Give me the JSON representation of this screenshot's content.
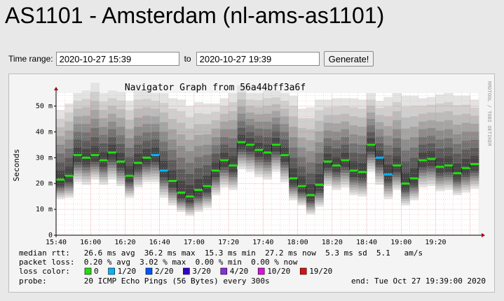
{
  "page": {
    "title": "AS1101 - Amsterdam (nl-ams-as1101)"
  },
  "form": {
    "time_range_label": "Time range:",
    "from_value": "2020-10-27 15:39",
    "to_label": "to",
    "to_value": "2020-10-27 19:39",
    "generate_label": "Generate!"
  },
  "graph": {
    "side_label": "RRDTOOL / TOBI OETIKER",
    "legend": {
      "rtt_line": "median rtt:   26.6 ms avg  36.2 ms max  15.3 ms min  27.2 ms now  5.3 ms sd  5.1   am/s",
      "loss_line": "packet loss:  0.20 % avg  3.02 % max  0.00 % min  0.00 % now",
      "loss_color_label": "loss color:",
      "loss_items": [
        {
          "label": "0",
          "color": "#22dd11"
        },
        {
          "label": "1/20",
          "color": "#00b4ff"
        },
        {
          "label": "2/20",
          "color": "#0055ff"
        },
        {
          "label": "3/20",
          "color": "#3300cc"
        },
        {
          "label": "4/20",
          "color": "#8a2be2"
        },
        {
          "label": "10/20",
          "color": "#dd11dd"
        },
        {
          "label": "19/20",
          "color": "#dd1111"
        }
      ],
      "probe_line": "probe:        20 ICMP Echo Pings (56 Bytes) every 300s",
      "end_line": "end: Tue Oct 27 19:39:00 2020"
    }
  },
  "chart_data": {
    "type": "area",
    "title": "Navigator Graph from 56a44bff3a6f",
    "ylabel": "Seconds",
    "ylim": [
      0,
      55
    ],
    "y_unit": "m",
    "y_ticks": [
      {
        "value": 0,
        "label": "0"
      },
      {
        "value": 10,
        "label": "10 m"
      },
      {
        "value": 20,
        "label": "20 m"
      },
      {
        "value": 30,
        "label": "30 m"
      },
      {
        "value": 40,
        "label": "40 m"
      },
      {
        "value": 50,
        "label": "50 m"
      }
    ],
    "x_ticks": [
      "15:40",
      "16:00",
      "16:20",
      "16:40",
      "17:00",
      "17:20",
      "17:40",
      "18:00",
      "18:20",
      "18:40",
      "19:00",
      "19:20"
    ],
    "x_start": "15:40",
    "x_step_minutes": 5,
    "median": [
      21.5,
      23,
      31,
      30,
      31,
      29,
      32,
      28.5,
      23,
      28,
      30,
      31,
      25,
      21,
      16.5,
      15,
      17.5,
      19,
      25,
      29,
      27,
      36,
      35,
      33,
      32,
      35,
      31,
      22,
      19,
      15.5,
      19.5,
      28.5,
      27,
      29,
      25,
      24.5,
      35,
      30,
      23.5,
      27,
      20,
      22,
      29,
      29.5,
      26.5,
      27,
      24,
      26,
      27.5
    ],
    "loss_index": [
      0,
      0,
      0,
      0,
      0,
      0,
      0,
      0,
      0,
      0,
      0,
      1,
      1,
      0,
      0,
      0,
      0,
      0,
      0,
      0,
      0,
      0,
      0,
      0,
      0,
      0,
      0,
      0,
      0,
      0,
      0,
      0,
      0,
      0,
      0,
      0,
      0,
      1,
      1,
      0,
      0,
      0,
      0,
      0,
      0,
      0,
      0,
      0,
      0
    ],
    "spread_low": [
      6,
      7,
      9,
      9,
      8,
      8,
      9,
      8,
      7,
      8,
      8,
      9,
      9,
      8,
      6,
      6,
      7,
      7,
      8,
      9,
      8,
      9,
      9,
      9,
      9,
      9,
      9,
      7,
      6,
      6,
      7,
      8,
      8,
      9,
      8,
      8,
      9,
      9,
      8,
      8,
      7,
      7,
      9,
      9,
      8,
      8,
      7,
      8,
      8
    ],
    "spread_high": [
      27,
      28,
      24,
      26,
      28,
      26,
      24,
      27,
      29,
      28,
      26,
      24,
      30,
      32,
      36,
      35,
      34,
      32,
      26,
      24,
      28,
      22,
      20,
      22,
      24,
      21,
      24,
      32,
      30,
      34,
      33,
      24,
      26,
      24,
      28,
      28,
      20,
      22,
      30,
      28,
      34,
      32,
      24,
      24,
      28,
      28,
      30,
      28,
      25
    ]
  }
}
